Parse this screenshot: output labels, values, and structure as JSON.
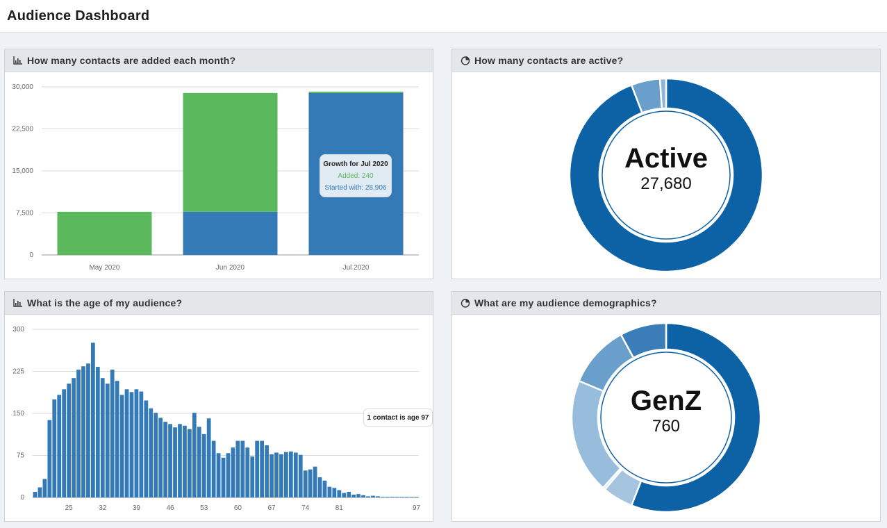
{
  "app": {
    "title": "Audience Dashboard"
  },
  "panels": {
    "monthly": {
      "title": "How many contacts are added each month?",
      "icon": "bar-chart-icon"
    },
    "active": {
      "title": "How many contacts are active?",
      "icon": "pie-chart-icon"
    },
    "age": {
      "title": "What is the age of my audience?",
      "icon": "bar-chart-icon"
    },
    "demographics": {
      "title": "What are my audience demographics?",
      "icon": "pie-chart-icon"
    }
  },
  "colors": {
    "green": "#5cb85c",
    "blue": "#337ab7",
    "donut_dark": "#0d62a5",
    "donut_mid": "#6a9fcb",
    "donut_light": "#a4c4df"
  },
  "monthly_tooltip": {
    "title": "Growth for Jul 2020",
    "added": "Added: 240",
    "started": "Started with: 28,906"
  },
  "age_tooltip": {
    "text": "1 contact is age 97"
  },
  "active_center": {
    "label": "Active",
    "value": "27,680"
  },
  "demographics_center": {
    "label": "GenZ",
    "value": "760"
  },
  "chart_data": [
    {
      "id": "monthly",
      "type": "bar",
      "stacked": true,
      "categories": [
        "May 2020",
        "Jun 2020",
        "Jul 2020"
      ],
      "series": [
        {
          "color": "#337ab7",
          "values": [
            0,
            7700,
            28906
          ]
        },
        {
          "color": "#5cb85c",
          "values": [
            7700,
            21206,
            240
          ]
        }
      ],
      "ylim": [
        0,
        30000
      ],
      "yticks": [
        "0",
        "7,500",
        "15,000",
        "22,500",
        "30,000"
      ],
      "grid": true
    },
    {
      "id": "active",
      "type": "pie",
      "donut": true,
      "slices": [
        {
          "label": "Active",
          "value": 27680,
          "color": "#0d62a5"
        },
        {
          "value": 1420,
          "color": "#6a9fcb"
        },
        {
          "value": 300,
          "color": "#8fb6d8"
        }
      ]
    },
    {
      "id": "age",
      "type": "bar",
      "x_start": 18,
      "values": [
        10,
        18,
        33,
        138,
        175,
        183,
        193,
        203,
        213,
        228,
        234,
        239,
        276,
        233,
        213,
        203,
        228,
        208,
        183,
        193,
        188,
        193,
        189,
        173,
        159,
        151,
        142,
        135,
        131,
        125,
        131,
        128,
        122,
        151,
        126,
        113,
        141,
        101,
        79,
        71,
        79,
        89,
        101,
        101,
        89,
        73,
        101,
        101,
        93,
        77,
        80,
        77,
        81,
        82,
        80,
        76,
        48,
        50,
        55,
        36,
        30,
        19,
        17,
        13,
        8,
        10,
        5,
        6,
        4,
        2,
        3,
        2,
        1,
        1,
        1,
        1,
        1,
        1,
        1,
        1
      ],
      "xticks": [
        "25",
        "32",
        "39",
        "46",
        "53",
        "60",
        "67",
        "74",
        "81",
        "97"
      ],
      "ylim": [
        0,
        300
      ],
      "yticks": [
        "0",
        "75",
        "150",
        "225",
        "300"
      ],
      "grid": true,
      "color": "#337ab7"
    },
    {
      "id": "demographics",
      "type": "pie",
      "donut": true,
      "slices": [
        {
          "value": 8100,
          "color": "#0d62a5"
        },
        {
          "label": "GenZ",
          "value": 760,
          "color": "#a4c4df"
        },
        {
          "value": 60,
          "color": "#c9dcee"
        },
        {
          "value": 2850,
          "color": "#98bcdb"
        },
        {
          "value": 1550,
          "color": "#6a9fcb"
        },
        {
          "value": 1150,
          "color": "#3a7db8"
        }
      ]
    }
  ]
}
